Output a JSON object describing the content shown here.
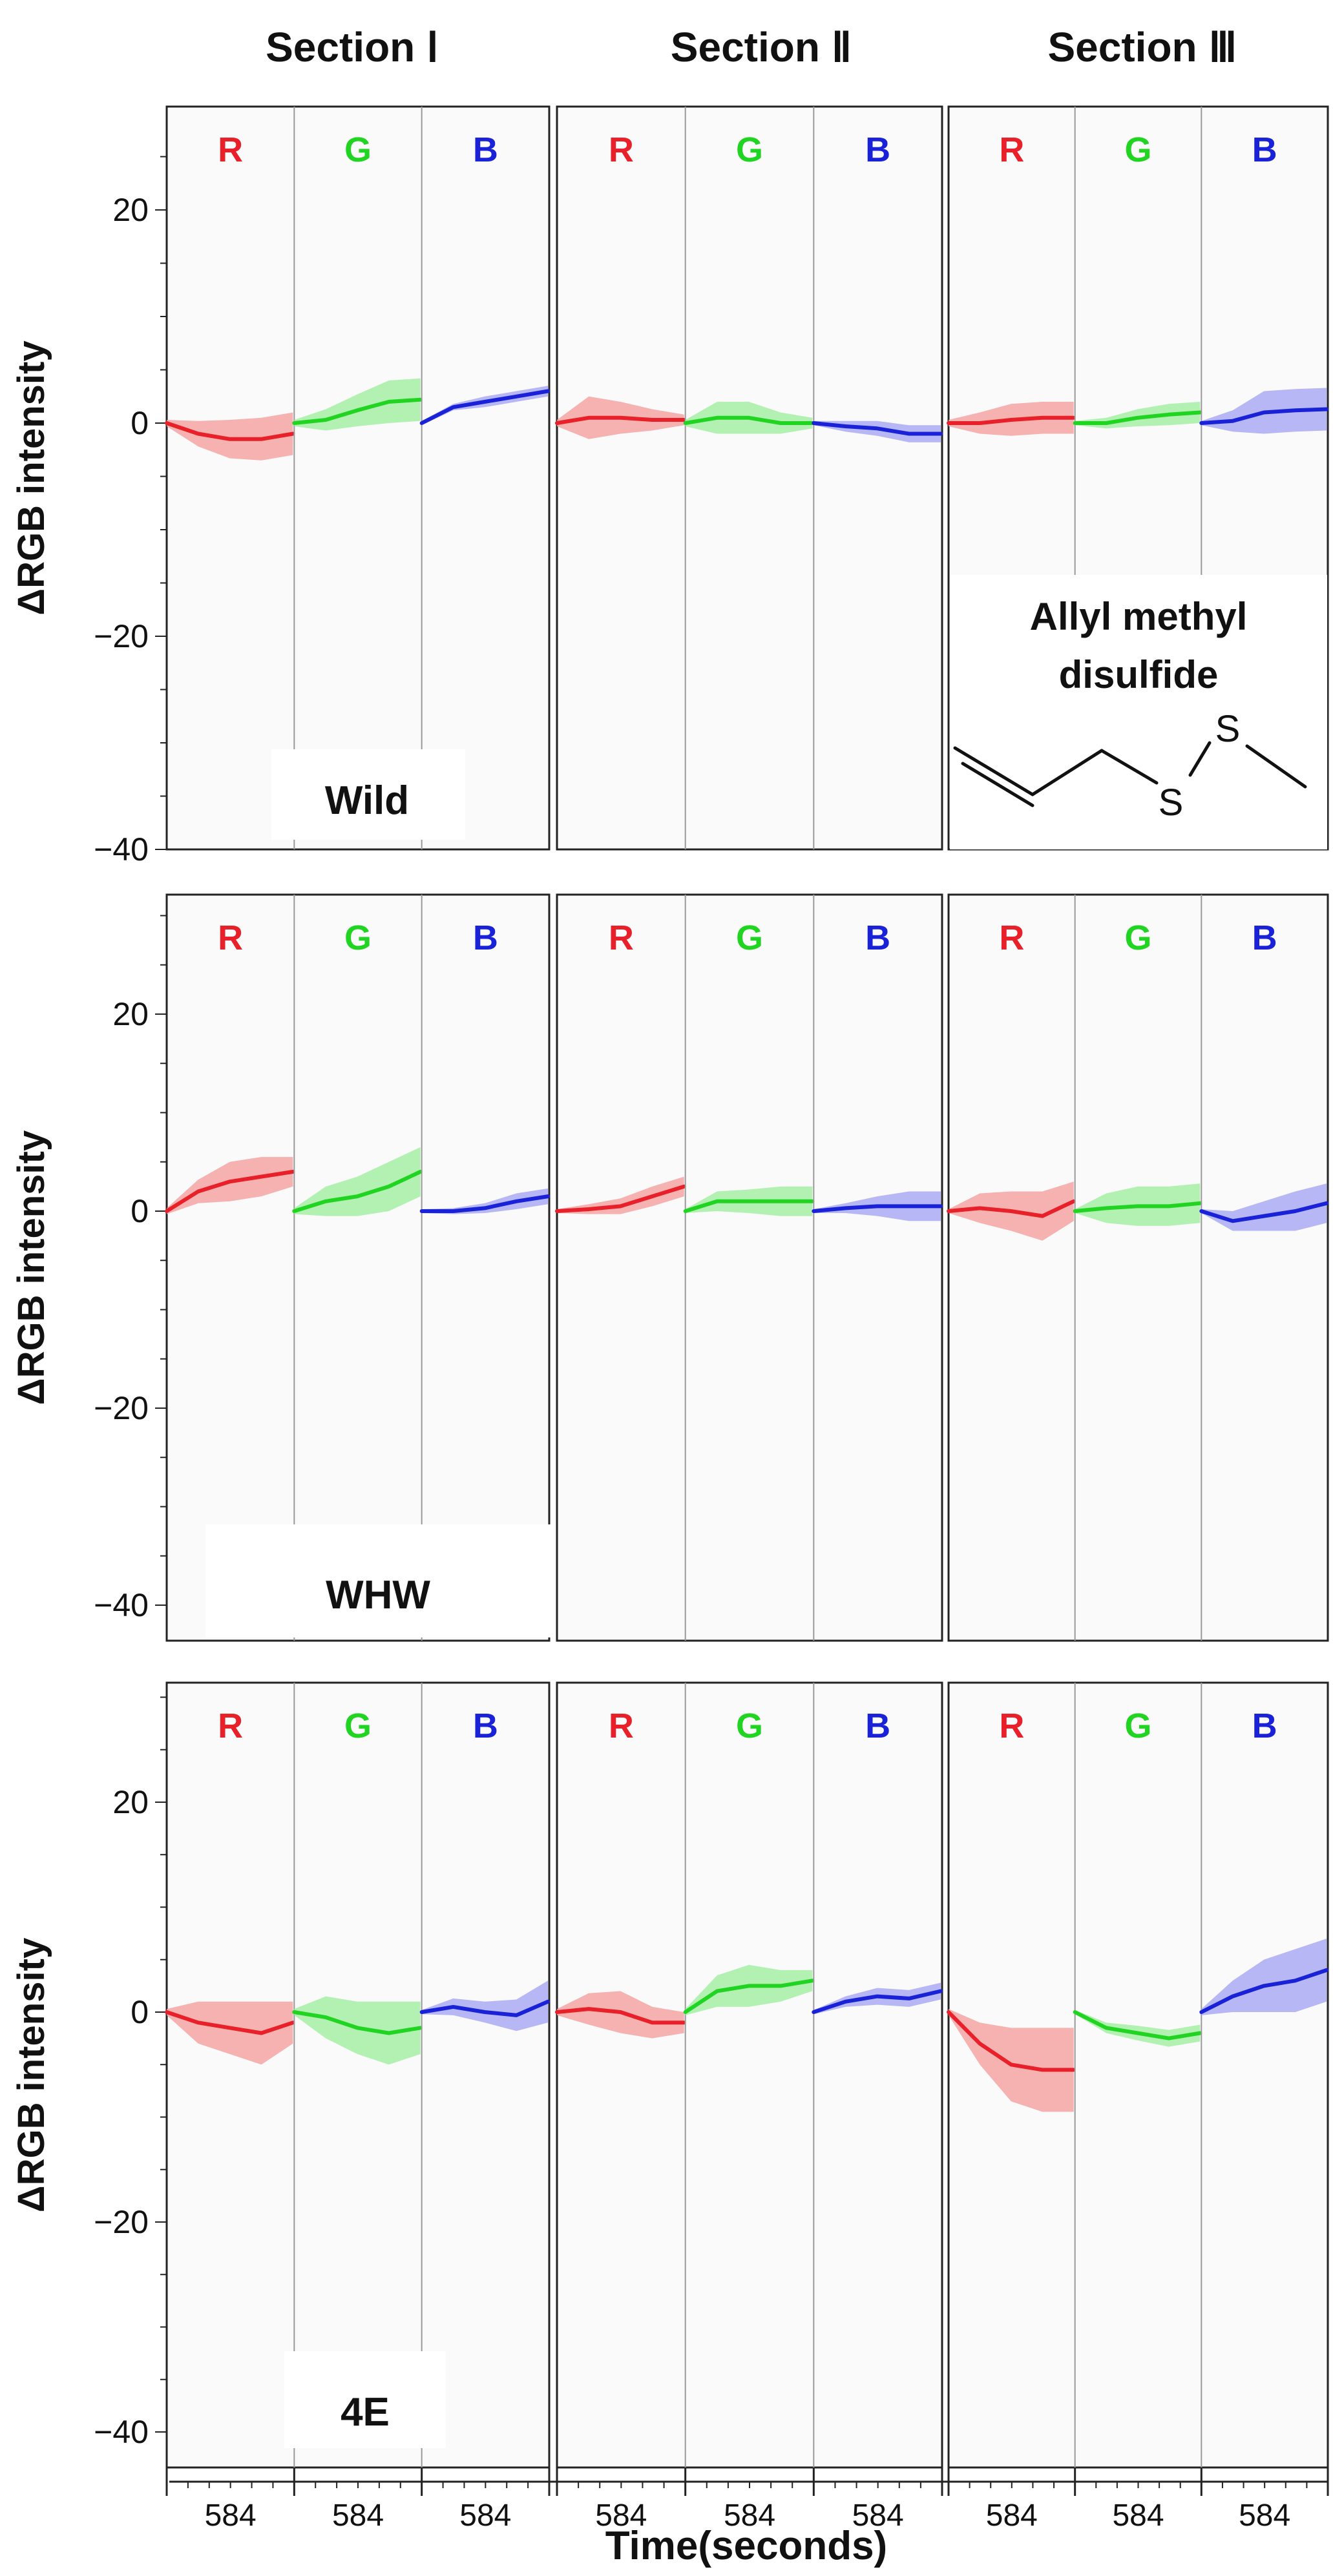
{
  "chart_data": {
    "type": "line",
    "title": "",
    "xlabel": "Time(seconds)",
    "ylabel": "ΔRGB intensity",
    "ylim": [
      -40,
      30
    ],
    "yticks": [
      20,
      0,
      -20,
      -40
    ],
    "column_titles": [
      "Section Ⅰ",
      "Section Ⅱ",
      "Section Ⅲ"
    ],
    "channel_labels": [
      "R",
      "G",
      "B"
    ],
    "x_tick_label": "584",
    "x_range_seconds": [
      0,
      584
    ],
    "colors": {
      "R": "#e8202a",
      "G": "#22d422",
      "B": "#1a22d8"
    },
    "band_colors": {
      "R": "#f4a3a3",
      "G": "#a6eea6",
      "B": "#a9aaf2"
    },
    "compound": {
      "name_line1": "Allyl methyl",
      "name_line2": "disulfide",
      "atom_label": "S"
    },
    "rows": [
      {
        "label": "Wild",
        "panels": [
          {
            "section": "Section Ⅰ",
            "R": {
              "mean": [
                0,
                -1,
                -1.5,
                -1.5,
                -1
              ],
              "half_width": [
                0.3,
                1.2,
                1.8,
                2,
                2
              ]
            },
            "G": {
              "mean": [
                0,
                0.3,
                1.2,
                2,
                2.2
              ],
              "half_width": [
                0.3,
                1,
                1.5,
                2,
                2
              ]
            },
            "B": {
              "mean": [
                0,
                1.5,
                2,
                2.5,
                3
              ],
              "half_width": [
                0.2,
                0.3,
                0.5,
                0.5,
                0.5
              ]
            }
          },
          {
            "section": "Section Ⅱ",
            "R": {
              "mean": [
                0,
                0.5,
                0.5,
                0.3,
                0.3
              ],
              "half_width": [
                0.3,
                2,
                1.5,
                1,
                0.5
              ]
            },
            "G": {
              "mean": [
                0,
                0.5,
                0.5,
                0,
                0
              ],
              "half_width": [
                0.3,
                1.5,
                1.5,
                1,
                0.5
              ]
            },
            "B": {
              "mean": [
                0,
                -0.3,
                -0.5,
                -1,
                -1
              ],
              "half_width": [
                0.2,
                0.5,
                0.7,
                0.8,
                0.8
              ]
            }
          },
          {
            "section": "Section Ⅲ",
            "R": {
              "mean": [
                0,
                0,
                0.3,
                0.5,
                0.5
              ],
              "half_width": [
                0.3,
                1,
                1.5,
                1.5,
                1.5
              ]
            },
            "G": {
              "mean": [
                0,
                0,
                0.5,
                0.8,
                1
              ],
              "half_width": [
                0.2,
                0.5,
                0.8,
                1,
                1
              ]
            },
            "B": {
              "mean": [
                0,
                0.2,
                1,
                1.2,
                1.3
              ],
              "half_width": [
                0.2,
                1,
                2,
                2,
                2
              ]
            }
          }
        ]
      },
      {
        "label": "WHW",
        "panels": [
          {
            "section": "Section Ⅰ",
            "R": {
              "mean": [
                0,
                2,
                3,
                3.5,
                4
              ],
              "half_width": [
                0.3,
                1.2,
                2,
                2,
                1.5
              ]
            },
            "G": {
              "mean": [
                0,
                1,
                1.5,
                2.5,
                4
              ],
              "half_width": [
                0.3,
                1.5,
                2,
                2.5,
                2.5
              ]
            },
            "B": {
              "mean": [
                0,
                0,
                0.3,
                1,
                1.5
              ],
              "half_width": [
                0.2,
                0.3,
                0.5,
                0.8,
                0.8
              ]
            }
          },
          {
            "section": "Section Ⅱ",
            "R": {
              "mean": [
                0,
                0.2,
                0.5,
                1.5,
                2.5
              ],
              "half_width": [
                0.2,
                0.5,
                0.8,
                1,
                1
              ]
            },
            "G": {
              "mean": [
                0,
                1,
                1,
                1,
                1
              ],
              "half_width": [
                0.2,
                1,
                1.2,
                1.5,
                1.5
              ]
            },
            "B": {
              "mean": [
                0,
                0.3,
                0.5,
                0.5,
                0.5
              ],
              "half_width": [
                0.2,
                0.5,
                1,
                1.5,
                1.5
              ]
            }
          },
          {
            "section": "Section Ⅲ",
            "R": {
              "mean": [
                0,
                0.3,
                0,
                -0.5,
                1
              ],
              "half_width": [
                0.2,
                1.5,
                2,
                2.5,
                2
              ]
            },
            "G": {
              "mean": [
                0,
                0.3,
                0.5,
                0.5,
                0.8
              ],
              "half_width": [
                0.2,
                1.5,
                2,
                2,
                2
              ]
            },
            "B": {
              "mean": [
                0,
                -1,
                -0.5,
                0,
                0.8
              ],
              "half_width": [
                0.2,
                1,
                1.5,
                2,
                2
              ]
            }
          }
        ]
      },
      {
        "label": "4E",
        "panels": [
          {
            "section": "Section Ⅰ",
            "R": {
              "mean": [
                0,
                -1,
                -1.5,
                -2,
                -1
              ],
              "half_width": [
                0.3,
                2,
                2.5,
                3,
                2
              ]
            },
            "G": {
              "mean": [
                0,
                -0.5,
                -1.5,
                -2,
                -1.5
              ],
              "half_width": [
                0.3,
                2,
                2.5,
                3,
                2.5
              ]
            },
            "B": {
              "mean": [
                0,
                0.5,
                0,
                -0.3,
                1
              ],
              "half_width": [
                0.2,
                0.8,
                1,
                1.5,
                2
              ]
            }
          },
          {
            "section": "Section Ⅱ",
            "R": {
              "mean": [
                0,
                0.3,
                0,
                -1,
                -1
              ],
              "half_width": [
                0.3,
                1.5,
                2,
                1.5,
                1
              ]
            },
            "G": {
              "mean": [
                0,
                2,
                2.5,
                2.5,
                3
              ],
              "half_width": [
                0.3,
                1.5,
                2,
                1.5,
                1
              ]
            },
            "B": {
              "mean": [
                0,
                1,
                1.5,
                1.3,
                2
              ],
              "half_width": [
                0.2,
                0.5,
                0.8,
                0.8,
                0.8
              ]
            }
          },
          {
            "section": "Section Ⅲ",
            "R": {
              "mean": [
                0,
                -3,
                -5,
                -5.5,
                -5.5
              ],
              "half_width": [
                0.3,
                2,
                3.5,
                4,
                4
              ]
            },
            "G": {
              "mean": [
                0,
                -1.5,
                -2,
                -2.5,
                -2
              ],
              "half_width": [
                0.2,
                0.5,
                0.7,
                0.8,
                0.8
              ]
            },
            "B": {
              "mean": [
                0,
                1.5,
                2.5,
                3,
                4
              ],
              "half_width": [
                0.3,
                1.5,
                2.5,
                3,
                3
              ]
            }
          }
        ]
      }
    ]
  }
}
